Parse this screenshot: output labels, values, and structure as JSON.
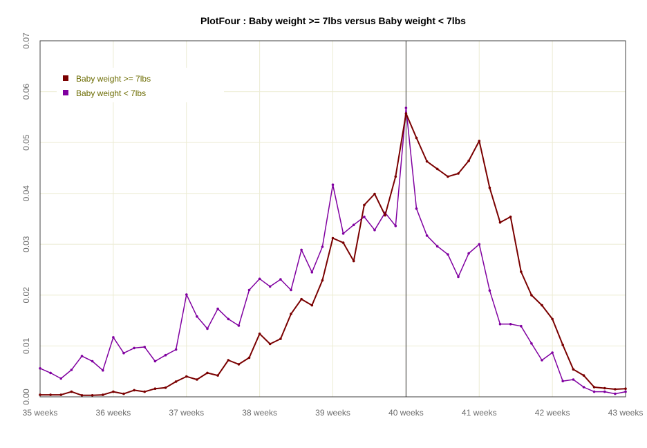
{
  "chart_data": {
    "type": "line",
    "title": "PlotFour : Baby weight >= 7lbs versus Baby weight < 7lbs",
    "xlabel": "",
    "ylabel": "",
    "x_ticks": [
      "35 weeks",
      "36 weeks",
      "37 weeks",
      "38 weeks",
      "39 weeks",
      "40 weeks",
      "41 weeks",
      "42 weeks",
      "43 weeks"
    ],
    "y_ticks": [
      "0.00",
      "0.01",
      "0.02",
      "0.03",
      "0.04",
      "0.05",
      "0.06",
      "0.07"
    ],
    "xlim": [
      35,
      43
    ],
    "ylim": [
      0,
      0.07
    ],
    "x": [
      35.0,
      35.142857,
      35.285714,
      35.428571,
      35.571429,
      35.714286,
      35.857143,
      36.0,
      36.142857,
      36.285714,
      36.428571,
      36.571429,
      36.714286,
      36.857143,
      37.0,
      37.142857,
      37.285714,
      37.428571,
      37.571429,
      37.714286,
      37.857143,
      38.0,
      38.142857,
      38.285714,
      38.428571,
      38.571429,
      38.714286,
      38.857143,
      39.0,
      39.142857,
      39.285714,
      39.428571,
      39.571429,
      39.714286,
      39.857143,
      40.0,
      40.142857,
      40.285714,
      40.428571,
      40.571429,
      40.714286,
      40.857143,
      41.0,
      41.142857,
      41.285714,
      41.428571,
      41.571429,
      41.714286,
      41.857143,
      42.0,
      42.142857,
      42.285714,
      42.428571,
      42.571429,
      42.714286,
      42.857143,
      43.0
    ],
    "series": [
      {
        "name": "Baby weight >= 7lbs",
        "color": "#7a0000",
        "values": [
          0.0004,
          0.0004,
          0.0004,
          0.001,
          0.0003,
          0.0003,
          0.0004,
          0.001,
          0.0006,
          0.0013,
          0.001,
          0.0016,
          0.0018,
          0.003,
          0.004,
          0.0034,
          0.0047,
          0.0042,
          0.0072,
          0.0064,
          0.0077,
          0.0124,
          0.0104,
          0.0114,
          0.0163,
          0.0192,
          0.018,
          0.0229,
          0.0312,
          0.0303,
          0.0267,
          0.0377,
          0.0399,
          0.0357,
          0.0433,
          0.0557,
          0.0509,
          0.0463,
          0.0448,
          0.0433,
          0.0439,
          0.0464,
          0.0503,
          0.0411,
          0.0343,
          0.0354,
          0.0246,
          0.02,
          0.018,
          0.0153,
          0.0102,
          0.0054,
          0.0042,
          0.0019,
          0.0017,
          0.0015,
          0.0016
        ]
      },
      {
        "name": "Baby weight < 7lbs",
        "color": "#8000a0",
        "values": [
          0.0056,
          0.0047,
          0.0036,
          0.0053,
          0.008,
          0.007,
          0.0052,
          0.0117,
          0.0086,
          0.0096,
          0.0098,
          0.007,
          0.0082,
          0.0093,
          0.0201,
          0.0158,
          0.0134,
          0.0173,
          0.0153,
          0.014,
          0.021,
          0.0232,
          0.0217,
          0.0231,
          0.021,
          0.0289,
          0.0245,
          0.0295,
          0.0417,
          0.0321,
          0.0338,
          0.0354,
          0.0328,
          0.0362,
          0.0336,
          0.0568,
          0.037,
          0.0317,
          0.0296,
          0.028,
          0.0236,
          0.0282,
          0.03,
          0.0209,
          0.0143,
          0.0143,
          0.0139,
          0.0105,
          0.0072,
          0.0087,
          0.0031,
          0.0034,
          0.0019,
          0.001,
          0.001,
          0.0006,
          0.001
        ]
      }
    ],
    "vertical_marker_x": 40,
    "grid": true,
    "legend_position": "top-left"
  }
}
